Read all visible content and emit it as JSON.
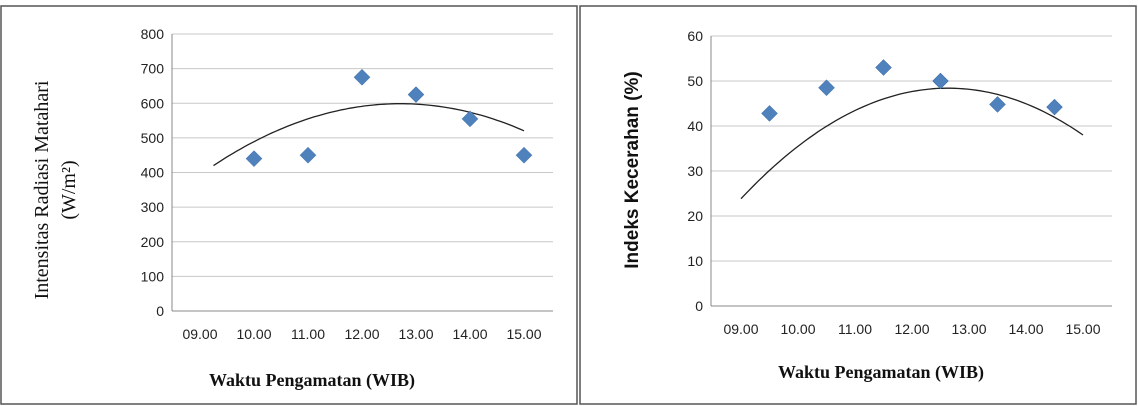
{
  "chart_data": [
    {
      "type": "scatter",
      "x_categories": [
        "09.00",
        "10.00",
        "11.00",
        "12.00",
        "13.00",
        "14.00",
        "15.00"
      ],
      "y_ticks": [
        "0",
        "100",
        "200",
        "300",
        "400",
        "500",
        "600",
        "700",
        "800"
      ],
      "xlabel": "Waktu Pengamatan (WIB)",
      "ylabel_line1": "Intensitas Radiasi Matahari",
      "ylabel_line2": "(W/m²)",
      "ylim": [
        0,
        800
      ],
      "grid": true,
      "marker_color": "#4f81bd",
      "series": [
        {
          "x": [
            10,
            11,
            12,
            13,
            14,
            15
          ],
          "y": [
            440,
            450,
            675,
            625,
            555,
            450
          ]
        }
      ],
      "trendline": {
        "type": "polynomial-2",
        "x_range": [
          9.25,
          15.0
        ],
        "coef": [
          -1812,
          379.3,
          -14.92
        ]
      }
    },
    {
      "type": "scatter",
      "x_categories": [
        "09.00",
        "10.00",
        "11.00",
        "12.00",
        "13.00",
        "14.00",
        "15.00"
      ],
      "y_ticks": [
        "0",
        "10",
        "20",
        "30",
        "40",
        "50",
        "60"
      ],
      "xlabel": "Waktu Pengamatan (WIB)",
      "ylabel": "Indeks Kecerahan (%)",
      "ylim": [
        0,
        60
      ],
      "grid": true,
      "marker_color": "#4f81bd",
      "series": [
        {
          "x": [
            9.5,
            10.5,
            11.5,
            12.5,
            13.5,
            14.5
          ],
          "y": [
            42.8,
            48.5,
            53.0,
            50.0,
            44.8,
            44.2
          ]
        }
      ],
      "trendline": {
        "type": "polynomial-2",
        "x_range": [
          9.0,
          15.0
        ],
        "coef": [
          -248.5,
          47.0,
          -1.86
        ]
      }
    }
  ]
}
